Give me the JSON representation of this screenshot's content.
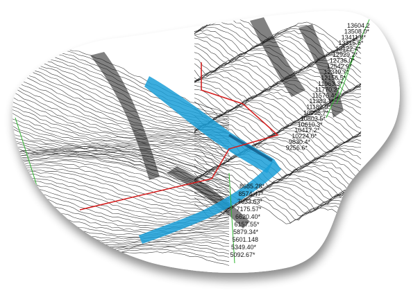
{
  "colors": {
    "background": "#ffffff",
    "mesh_line": "#1a1a1a",
    "water": "#1a9fd8",
    "water_dark": "#0b4f7a",
    "route": "#d42020",
    "grid_green": "#2fb52f"
  },
  "elevation_labels": [
    "13604.2",
    "13508.0*",
    "13411.8*",
    "13315.5*",
    "13122.4*",
    "12929.2*",
    "12736.0*",
    "12542.9*",
    "12349.7*",
    "12156.5*",
    "11963.3*",
    "11770.2*",
    "11576.4*",
    "11383.1*",
    "11189.9*",
    "10996.7*",
    "10803.5*",
    "10610.3*",
    "10417.2*",
    "10224.0*",
    "9830.4*",
    "9256.6*",
    "8685.28*",
    "8574.47*",
    "7933.63*",
    "7175.57*",
    "6620.40*",
    "6157.55*",
    "5879.34*",
    "5601.148",
    "5349.40*",
    "5092.67*"
  ]
}
